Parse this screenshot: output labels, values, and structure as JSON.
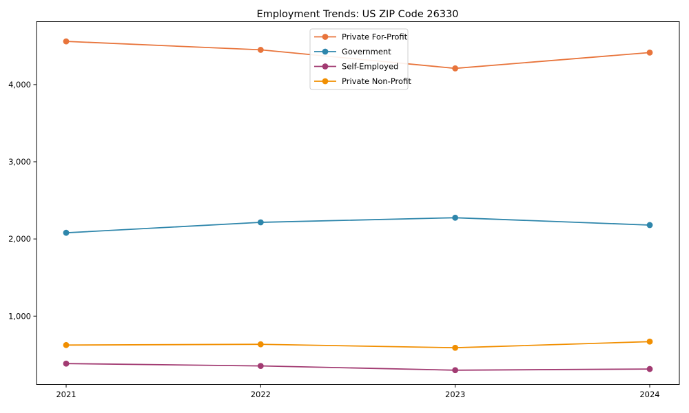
{
  "figure": {
    "background": "#ffffff"
  },
  "chart_data": {
    "type": "line",
    "title": "Employment Trends: US ZIP Code 26330",
    "x": [
      2021,
      2022,
      2023,
      2024
    ],
    "x_tick_labels": [
      "2021",
      "2022",
      "2023",
      "2024"
    ],
    "y_ticks": [
      1000,
      2000,
      3000,
      4000
    ],
    "y_tick_labels": [
      "1,000",
      "2,000",
      "3,000",
      "4,000"
    ],
    "ylim": [
      115,
      4815
    ],
    "xlabel": "",
    "ylabel": "",
    "grid": false,
    "legend_position": "upper-center",
    "axis_color": "#000000",
    "marker": "circle",
    "series": [
      {
        "name": "Private For-Profit",
        "color": "#E8743B",
        "values": [
          4560,
          4450,
          4210,
          4415
        ]
      },
      {
        "name": "Government",
        "color": "#2E86AB",
        "values": [
          2080,
          2215,
          2275,
          2180
        ]
      },
      {
        "name": "Self-Employed",
        "color": "#A23B72",
        "values": [
          385,
          355,
          300,
          315
        ]
      },
      {
        "name": "Private Non-Profit",
        "color": "#F18F01",
        "values": [
          625,
          635,
          590,
          670
        ]
      }
    ]
  }
}
